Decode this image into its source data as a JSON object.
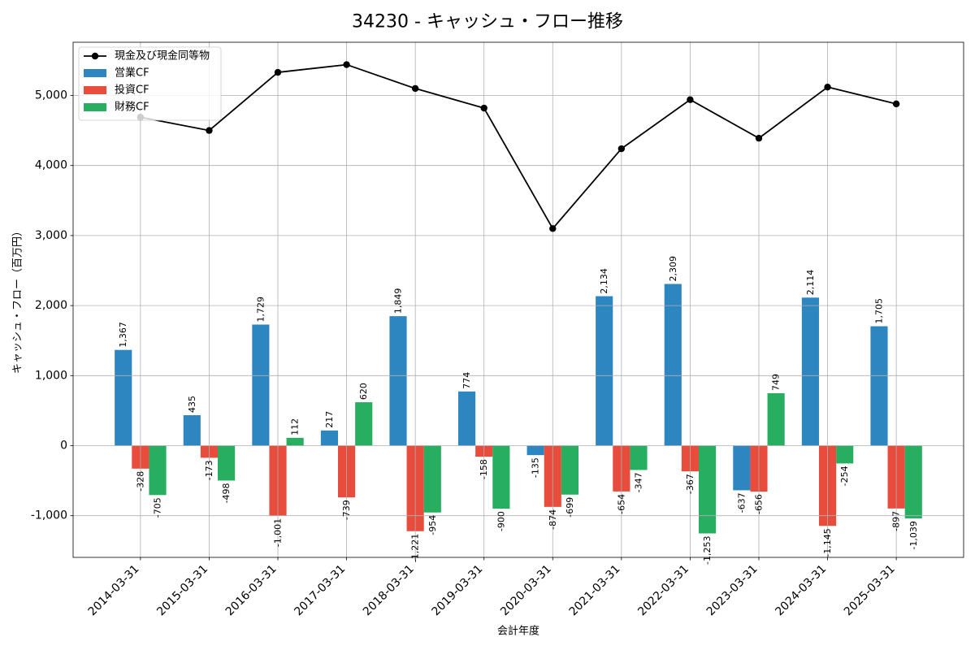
{
  "chart_data": {
    "type": "bar",
    "title": "34230 - キャッシュ・フロー推移",
    "xlabel": "会計年度",
    "ylabel": "キャッシュ・フロー（百万円）",
    "categories": [
      "2014-03-31",
      "2015-03-31",
      "2016-03-31",
      "2017-03-31",
      "2018-03-31",
      "2019-03-31",
      "2020-03-31",
      "2021-03-31",
      "2022-03-31",
      "2023-03-31",
      "2024-03-31",
      "2025-03-31"
    ],
    "ylim": [
      -1595,
      5760
    ],
    "yticks": [
      -1000,
      0,
      1000,
      2000,
      3000,
      4000,
      5000
    ],
    "ytick_labels": [
      "-1,000",
      "0",
      "1,000",
      "2,000",
      "3,000",
      "4,000",
      "5,000"
    ],
    "grid": true,
    "legend": "upper-left",
    "series": [
      {
        "name": "現金及び現金同等物",
        "type": "line",
        "color": "#000000",
        "marker": "circle",
        "values": [
          4690,
          4500,
          5330,
          5440,
          5100,
          4820,
          3100,
          4240,
          4940,
          4390,
          5120,
          4880
        ]
      },
      {
        "name": "営業CF",
        "type": "bar",
        "color": "#2E86C1",
        "values": [
          1367,
          435,
          1729,
          217,
          1849,
          774,
          -135,
          2134,
          2309,
          -637,
          2114,
          1705
        ],
        "labels": [
          "1,367",
          "435",
          "1,729",
          "217",
          "1,849",
          "774",
          "-135",
          "2,134",
          "2,309",
          "-637",
          "2,114",
          "1,705"
        ]
      },
      {
        "name": "投資CF",
        "type": "bar",
        "color": "#E74C3C",
        "values": [
          -328,
          -173,
          -1001,
          -739,
          -1221,
          -158,
          -874,
          -654,
          -367,
          -656,
          -1145,
          -897
        ],
        "labels": [
          "-328",
          "-173",
          "-1,001",
          "-739",
          "-1,221",
          "-158",
          "-874",
          "-654",
          "-367",
          "-656",
          "-1,145",
          "-897"
        ]
      },
      {
        "name": "財務CF",
        "type": "bar",
        "color": "#27AE60",
        "values": [
          -705,
          -498,
          112,
          620,
          -954,
          -900,
          -699,
          -347,
          -1253,
          749,
          -254,
          -1039
        ],
        "labels": [
          "-705",
          "-498",
          "112",
          "620",
          "-954",
          "-900",
          "-699",
          "-347",
          "-1,253",
          "749",
          "-254",
          "-1,039"
        ]
      }
    ]
  }
}
